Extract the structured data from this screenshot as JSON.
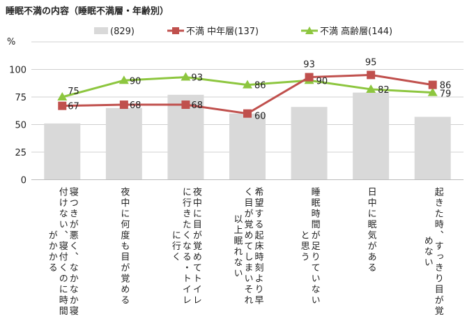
{
  "chart_data": {
    "type": "bar",
    "title": "睡眠不満の内容（睡眠不満層・年齢別）",
    "ylabel": "%",
    "ylim": [
      0,
      125
    ],
    "yticks": [
      0,
      25,
      50,
      75,
      100
    ],
    "grid": true,
    "legend_placement": "top",
    "categories": [
      "寝つきが悪く、なかなか寝付けない、寝付くのに時間がかかる",
      "夜中に何度も目が覚める",
      "夜中に目が覚めてトイレに行きたくなる・トイレに行く",
      "希望する起床時刻より早く目が覚めてしまいそれ以上眠れない",
      "睡眠時間が足りていないと思う",
      "日中に眠気がある",
      "起きた時、すっきり目が覚めない"
    ],
    "category_lines": [
      [
        "寝つきが悪く、なかなか寝",
        "付けない、寝付くのに時間",
        "がかかる"
      ],
      [
        "夜中に何度も目が覚める"
      ],
      [
        "夜中に目が覚めてトイレ",
        "に行きたくなる・トイレ",
        "に行く"
      ],
      [
        "希望する起床時刻より早",
        "く目が覚めてしまいそれ",
        "以上眠れない"
      ],
      [
        "睡眠時間が足りていない",
        "と思う"
      ],
      [
        "日中に眠気がある"
      ],
      [
        "起きた時、すっきり目が覚",
        "めない"
      ]
    ],
    "series": [
      {
        "name": "(829)",
        "type": "bar",
        "color": "#d9d9d9",
        "values": [
          51,
          65,
          77,
          60,
          66,
          79,
          57
        ]
      },
      {
        "name": "不満 中年層(137)",
        "type": "line",
        "marker": "square",
        "color": "#c0504d",
        "values": [
          67,
          68,
          68,
          60,
          93,
          95,
          86
        ]
      },
      {
        "name": "不満 高齢層(144)",
        "type": "line",
        "marker": "triangle",
        "color": "#8dc63f",
        "values": [
          75,
          90,
          93,
          86,
          90,
          82,
          79
        ]
      }
    ]
  }
}
